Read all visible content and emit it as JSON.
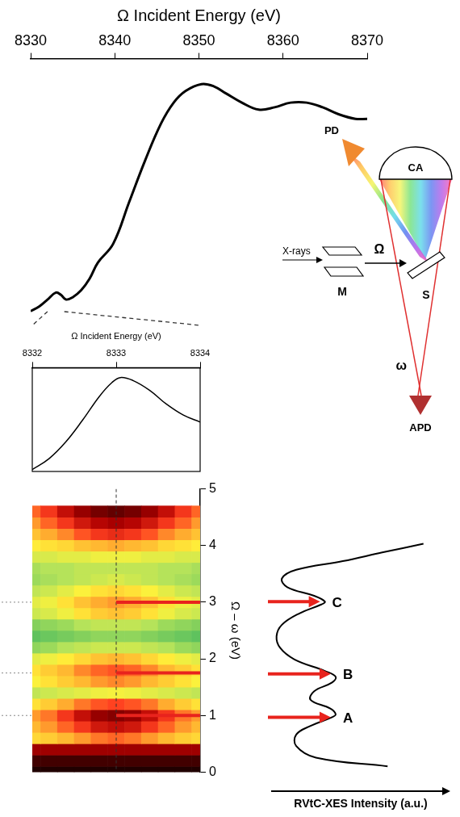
{
  "chart_data": [
    {
      "type": "line",
      "x_label": "Ω Incident Energy (eV)",
      "x": [
        8330,
        8331,
        8332,
        8333,
        8333.6,
        8334.2,
        8335,
        8336,
        8337,
        8338,
        8339.8,
        8341.7,
        8343.6,
        8345.5,
        8347,
        8348.4,
        8350.3,
        8351.8,
        8353.2,
        8355.1,
        8357.1,
        8359,
        8360.9,
        8362.8,
        8364.7,
        8366.6,
        8368.6,
        8370
      ],
      "values": [
        0.03,
        0.05,
        0.08,
        0.11,
        0.1,
        0.08,
        0.09,
        0.12,
        0.17,
        0.24,
        0.32,
        0.5,
        0.68,
        0.84,
        0.93,
        0.98,
        1.01,
        1.0,
        0.97,
        0.93,
        0.9,
        0.91,
        0.93,
        0.93,
        0.91,
        0.88,
        0.86,
        0.86
      ],
      "color": "#000000",
      "xlim": [
        8330,
        8370
      ],
      "xticks": [
        8330,
        8340,
        8350,
        8360,
        8370
      ],
      "ylim": [
        0,
        1.12
      ],
      "tick_labels": "x",
      "grid": false
    },
    {
      "type": "line",
      "x_label": "Ω Incident Energy (eV)",
      "x": [
        8332,
        8332.2,
        8332.4,
        8332.6,
        8332.8,
        8332.95,
        8333.05,
        8333.2,
        8333.4,
        8333.6,
        8333.8,
        8334
      ],
      "values": [
        0.02,
        0.13,
        0.3,
        0.52,
        0.76,
        0.9,
        0.95,
        0.92,
        0.82,
        0.68,
        0.57,
        0.5
      ],
      "color": "#000000",
      "xlim": [
        8332,
        8334
      ],
      "xticks": [
        8332,
        8333,
        8334
      ],
      "ylim": [
        0,
        1.05
      ],
      "tick_labels": "x",
      "grid": false
    },
    {
      "type": "heatmap",
      "y_label": "Ω – ω (eV)",
      "x": [
        8332,
        8332.2,
        8332.4,
        8332.6,
        8332.8,
        8333,
        8333.2,
        8333.4,
        8333.6,
        8333.8,
        8334
      ],
      "y": [
        0,
        0.2,
        0.4,
        0.6,
        0.8,
        1.0,
        1.2,
        1.4,
        1.6,
        1.8,
        2.0,
        2.2,
        2.4,
        2.6,
        2.8,
        3.0,
        3.2,
        3.4,
        3.6,
        3.8,
        4.0,
        4.2,
        4.4,
        4.6
      ],
      "cells": [
        [
          10,
          10,
          10,
          10,
          10,
          10,
          10,
          10,
          10,
          10,
          10
        ],
        [
          9.6,
          9.6,
          9.6,
          9.6,
          9.6,
          9.6,
          9.6,
          9.6,
          9.6,
          9.6,
          9.6
        ],
        [
          8.5,
          8.5,
          8.5,
          8.5,
          8.5,
          8.5,
          8.5,
          8.5,
          8.5,
          8.5,
          8.5
        ],
        [
          5.0,
          5.2,
          5.6,
          6.0,
          6.4,
          6.6,
          6.4,
          6.0,
          5.6,
          5.2,
          5.0
        ],
        [
          5.6,
          6.0,
          6.6,
          7.2,
          7.8,
          8.0,
          7.8,
          7.2,
          6.6,
          6.0,
          5.6
        ],
        [
          6.0,
          6.4,
          7.2,
          8.0,
          8.6,
          8.8,
          8.6,
          8.0,
          7.2,
          6.4,
          6.0
        ],
        [
          4.8,
          5.2,
          5.8,
          6.4,
          6.8,
          7.0,
          6.8,
          6.4,
          5.8,
          5.2,
          4.8
        ],
        [
          3.4,
          3.6,
          3.8,
          4.0,
          4.2,
          4.3,
          4.2,
          4.0,
          3.8,
          3.6,
          3.4
        ],
        [
          4.4,
          4.8,
          5.2,
          5.6,
          6.0,
          6.2,
          6.0,
          5.6,
          5.2,
          4.8,
          4.4
        ],
        [
          4.8,
          5.2,
          5.6,
          6.2,
          6.6,
          6.8,
          6.6,
          6.2,
          5.6,
          5.2,
          4.8
        ],
        [
          4.0,
          4.2,
          4.6,
          5.0,
          5.4,
          5.6,
          5.4,
          5.0,
          4.6,
          4.2,
          4.0
        ],
        [
          2.6,
          2.8,
          3.2,
          3.4,
          3.6,
          3.6,
          3.6,
          3.4,
          3.2,
          2.8,
          2.6
        ],
        [
          1.8,
          2.0,
          2.2,
          2.4,
          2.6,
          2.6,
          2.6,
          2.4,
          2.2,
          2.0,
          1.8
        ],
        [
          2.4,
          2.6,
          2.8,
          3.2,
          3.4,
          3.4,
          3.4,
          3.2,
          2.8,
          2.6,
          2.4
        ],
        [
          3.6,
          3.8,
          4.2,
          4.8,
          5.2,
          5.4,
          5.2,
          4.8,
          4.2,
          3.8,
          3.6
        ],
        [
          4.0,
          4.2,
          4.8,
          5.4,
          5.8,
          6.0,
          5.8,
          5.4,
          4.8,
          4.2,
          4.0
        ],
        [
          3.4,
          3.6,
          4.0,
          4.4,
          4.8,
          5.0,
          4.8,
          4.4,
          4.0,
          3.6,
          3.4
        ],
        [
          2.8,
          3.0,
          3.2,
          3.4,
          3.6,
          3.8,
          3.6,
          3.4,
          3.2,
          3.0,
          2.8
        ],
        [
          3.0,
          3.2,
          3.2,
          3.4,
          3.4,
          3.4,
          3.4,
          3.4,
          3.2,
          3.2,
          3.0
        ],
        [
          3.8,
          3.8,
          4.0,
          4.0,
          4.2,
          4.2,
          4.2,
          4.0,
          4.0,
          3.8,
          3.8
        ],
        [
          4.6,
          4.8,
          5.0,
          5.4,
          5.6,
          5.8,
          5.6,
          5.4,
          5.0,
          4.8,
          4.6
        ],
        [
          5.4,
          5.8,
          6.2,
          6.8,
          7.2,
          7.4,
          7.2,
          6.8,
          6.2,
          5.8,
          5.4
        ],
        [
          6.0,
          6.6,
          7.2,
          7.8,
          8.2,
          8.4,
          8.2,
          7.8,
          7.2,
          6.6,
          6.0
        ],
        [
          6.6,
          7.2,
          8.0,
          8.6,
          9.0,
          9.2,
          9.0,
          8.6,
          8.0,
          7.2,
          6.6
        ]
      ],
      "zlim": [
        1.5,
        10
      ],
      "guide_x": 8333,
      "xlim": [
        8332,
        8334
      ],
      "ylim": [
        0,
        5
      ],
      "yticks": [
        0,
        1,
        2,
        3,
        4,
        5
      ],
      "tick_labels": "y",
      "grid": false
    },
    {
      "type": "line",
      "x_label": "RVtC-XES Intensity (a.u.)",
      "x": [
        0.65,
        0.25,
        0.14,
        0.14,
        0.22,
        0.34,
        0.36,
        0.33,
        0.22,
        0.24,
        0.34,
        0.36,
        0.3,
        0.13,
        0.05,
        0.03,
        0.06,
        0.16,
        0.28,
        0.3,
        0.24,
        0.09,
        0.06,
        0.14,
        0.4,
        0.62,
        0.85
      ],
      "y": [
        0.15,
        0.3,
        0.5,
        0.7,
        0.85,
        1.0,
        1.05,
        1.15,
        1.3,
        1.45,
        1.6,
        1.7,
        1.8,
        2.0,
        2.2,
        2.4,
        2.6,
        2.8,
        2.95,
        3.0,
        3.1,
        3.25,
        3.4,
        3.55,
        3.7,
        3.85,
        4.0
      ],
      "color": "#000000",
      "xlim": [
        0,
        1
      ],
      "ylim": [
        0,
        5
      ],
      "peaks": [
        {
          "label": "A",
          "value": 1.0
        },
        {
          "label": "B",
          "value": 1.75
        },
        {
          "label": "C",
          "value": 3.0
        }
      ],
      "tick_labels": false,
      "grid": false
    }
  ],
  "schematic": {
    "analyzer": "CA",
    "photodiode": "PD",
    "beam": "X-rays",
    "incident": "Ω",
    "monochromator": "M",
    "sample": "S",
    "emitted": "ω",
    "detector": "APD"
  }
}
